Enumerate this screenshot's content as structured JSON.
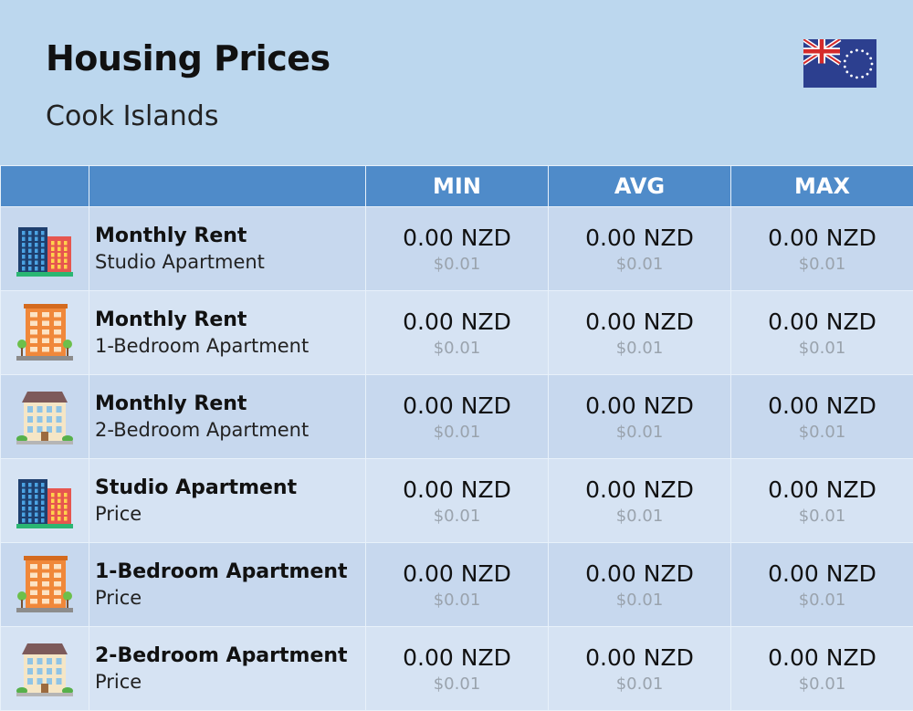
{
  "header": {
    "title": "Housing Prices",
    "subtitle": "Cook Islands",
    "flag_icon": "cook-islands-flag"
  },
  "table": {
    "columns": [
      "",
      "",
      "MIN",
      "AVG",
      "MAX"
    ],
    "rows": [
      {
        "icon": "highrise-building-icon",
        "main": "Monthly Rent",
        "sub": "Studio Apartment",
        "values": [
          {
            "nzd": "0.00 NZD",
            "usd": "$0.01"
          },
          {
            "nzd": "0.00 NZD",
            "usd": "$0.01"
          },
          {
            "nzd": "0.00 NZD",
            "usd": "$0.01"
          }
        ]
      },
      {
        "icon": "orange-apartment-building-icon",
        "main": "Monthly Rent",
        "sub": "1-Bedroom Apartment",
        "values": [
          {
            "nzd": "0.00 NZD",
            "usd": "$0.01"
          },
          {
            "nzd": "0.00 NZD",
            "usd": "$0.01"
          },
          {
            "nzd": "0.00 NZD",
            "usd": "$0.01"
          }
        ]
      },
      {
        "icon": "house-building-icon",
        "main": "Monthly Rent",
        "sub": "2-Bedroom Apartment",
        "values": [
          {
            "nzd": "0.00 NZD",
            "usd": "$0.01"
          },
          {
            "nzd": "0.00 NZD",
            "usd": "$0.01"
          },
          {
            "nzd": "0.00 NZD",
            "usd": "$0.01"
          }
        ]
      },
      {
        "icon": "highrise-building-icon",
        "main": "Studio Apartment",
        "sub": "Price",
        "values": [
          {
            "nzd": "0.00 NZD",
            "usd": "$0.01"
          },
          {
            "nzd": "0.00 NZD",
            "usd": "$0.01"
          },
          {
            "nzd": "0.00 NZD",
            "usd": "$0.01"
          }
        ]
      },
      {
        "icon": "orange-apartment-building-icon",
        "main": "1-Bedroom Apartment",
        "sub": "Price",
        "values": [
          {
            "nzd": "0.00 NZD",
            "usd": "$0.01"
          },
          {
            "nzd": "0.00 NZD",
            "usd": "$0.01"
          },
          {
            "nzd": "0.00 NZD",
            "usd": "$0.01"
          }
        ]
      },
      {
        "icon": "house-building-icon",
        "main": "2-Bedroom Apartment",
        "sub": "Price",
        "values": [
          {
            "nzd": "0.00 NZD",
            "usd": "$0.01"
          },
          {
            "nzd": "0.00 NZD",
            "usd": "$0.01"
          },
          {
            "nzd": "0.00 NZD",
            "usd": "$0.01"
          }
        ]
      }
    ]
  },
  "colors": {
    "background": "#bcd7ee",
    "header_row": "#4f8bc9",
    "row_odd": "#c7d8ee",
    "row_even": "#d6e3f3",
    "usd_text": "#9aa3ad"
  }
}
